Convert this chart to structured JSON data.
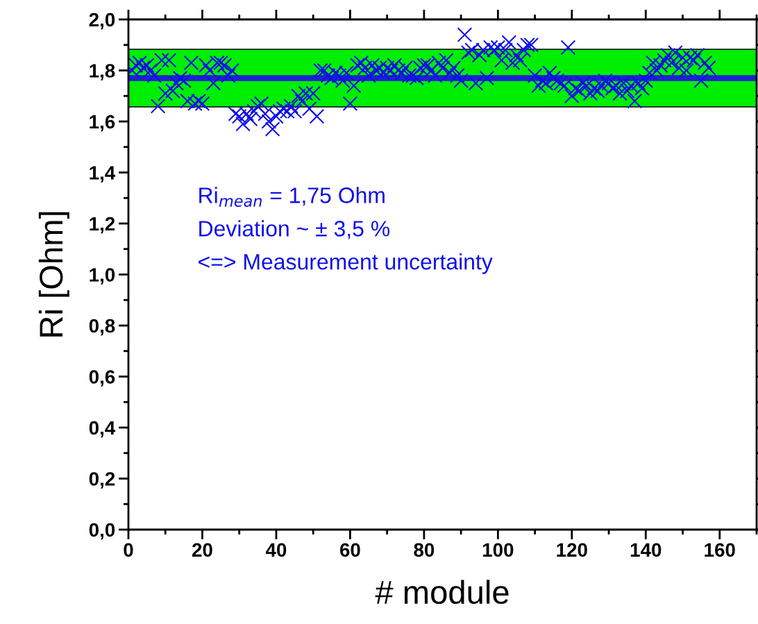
{
  "chart_data": {
    "type": "scatter",
    "xlabel": "# module",
    "ylabel": "Ri [Ohm]",
    "x": [
      1,
      2,
      3,
      4,
      5,
      6,
      7,
      8,
      9,
      10,
      11,
      12,
      13,
      14,
      15,
      16,
      17,
      18,
      19,
      20,
      21,
      22,
      23,
      24,
      25,
      26,
      27,
      28,
      29,
      30,
      31,
      32,
      33,
      34,
      35,
      36,
      37,
      38,
      39,
      40,
      41,
      42,
      43,
      44,
      45,
      46,
      47,
      48,
      49,
      50,
      51,
      52,
      53,
      54,
      55,
      56,
      57,
      58,
      59,
      60,
      61,
      62,
      63,
      64,
      65,
      66,
      67,
      68,
      69,
      70,
      71,
      72,
      73,
      74,
      75,
      76,
      77,
      78,
      79,
      80,
      81,
      82,
      83,
      84,
      85,
      86,
      87,
      88,
      89,
      90,
      91,
      92,
      93,
      94,
      95,
      96,
      97,
      98,
      99,
      100,
      101,
      102,
      103,
      104,
      105,
      106,
      107,
      108,
      109,
      110,
      111,
      112,
      113,
      114,
      115,
      116,
      117,
      118,
      119,
      120,
      121,
      122,
      123,
      124,
      125,
      126,
      127,
      128,
      129,
      130,
      131,
      132,
      133,
      134,
      135,
      136,
      137,
      138,
      139,
      140,
      141,
      142,
      143,
      144,
      145,
      146,
      147,
      148,
      149,
      150,
      151,
      152,
      153,
      154,
      155,
      156,
      157
    ],
    "series": [
      {
        "color": "#1010e8",
        "values": [
          1.8,
          1.82,
          1.83,
          1.81,
          1.82,
          1.8,
          1.78,
          1.66,
          1.84,
          1.71,
          1.84,
          1.72,
          1.75,
          1.77,
          1.76,
          1.68,
          1.83,
          1.67,
          1.68,
          1.67,
          1.82,
          1.8,
          1.75,
          1.83,
          1.83,
          1.82,
          1.78,
          1.8,
          1.63,
          1.62,
          1.59,
          1.63,
          1.61,
          1.64,
          1.66,
          1.67,
          1.63,
          1.6,
          1.57,
          1.62,
          1.64,
          1.65,
          1.64,
          1.66,
          1.64,
          1.7,
          1.68,
          1.71,
          1.65,
          1.71,
          1.62,
          1.8,
          1.8,
          1.78,
          1.77,
          1.79,
          1.78,
          1.76,
          1.79,
          1.67,
          1.74,
          1.82,
          1.83,
          1.81,
          1.78,
          1.82,
          1.8,
          1.81,
          1.79,
          1.81,
          1.8,
          1.82,
          1.8,
          1.79,
          1.81,
          1.78,
          1.78,
          1.77,
          1.81,
          1.82,
          1.82,
          1.8,
          1.78,
          1.83,
          1.81,
          1.84,
          1.79,
          1.81,
          1.78,
          1.76,
          1.94,
          1.87,
          1.88,
          1.75,
          1.86,
          1.88,
          1.77,
          1.89,
          1.88,
          1.89,
          1.84,
          1.88,
          1.91,
          1.83,
          1.86,
          1.84,
          1.88,
          1.9,
          1.9,
          1.78,
          1.74,
          1.76,
          1.75,
          1.79,
          1.77,
          1.76,
          1.75,
          1.74,
          1.89,
          1.7,
          1.73,
          1.72,
          1.75,
          1.74,
          1.71,
          1.73,
          1.72,
          1.74,
          1.76,
          1.75,
          1.73,
          1.74,
          1.71,
          1.75,
          1.72,
          1.74,
          1.68,
          1.75,
          1.73,
          1.76,
          1.79,
          1.83,
          1.8,
          1.82,
          1.84,
          1.86,
          1.83,
          1.87,
          1.81,
          1.85,
          1.8,
          1.85,
          1.84,
          1.86,
          1.76,
          1.83,
          1.81
        ]
      }
    ],
    "marker": "cross",
    "xlim": [
      0,
      170
    ],
    "xticks": [
      0,
      20,
      40,
      60,
      80,
      100,
      120,
      140,
      160
    ],
    "ylim": [
      0,
      2.0
    ],
    "yticks": [
      {
        "value": 0,
        "label": "0,0"
      },
      {
        "value": 0.2,
        "label": "0,2"
      },
      {
        "value": 0.4,
        "label": "0,4"
      },
      {
        "value": 0.6,
        "label": "0,6"
      },
      {
        "value": 0.8,
        "label": "0,8"
      },
      {
        "value": 1.0,
        "label": "1,0"
      },
      {
        "value": 1.2,
        "label": "1,2"
      },
      {
        "value": 1.4,
        "label": "1,4"
      },
      {
        "value": 1.6,
        "label": "1,6"
      },
      {
        "value": 1.8,
        "label": "1,8"
      },
      {
        "value": 2.0,
        "label": "2,0"
      }
    ],
    "ref_lines": [
      {
        "axis": "y",
        "value": 1.77,
        "color": "#2020d0"
      }
    ],
    "bands": [
      {
        "axis": "y",
        "from": 1.657,
        "to": 1.883,
        "color": "#00ee00"
      }
    ],
    "annotations": [
      "Ri$_{mean}$ = 1,75 Ohm",
      "Deviation ~ ± 3,5 %",
      "<=> Measurement uncertainty"
    ],
    "grid": false
  }
}
